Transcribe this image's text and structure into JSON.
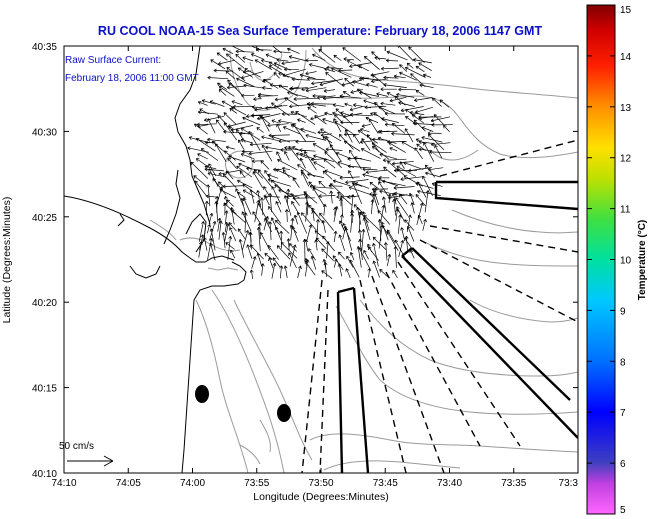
{
  "title": "RU COOL  NOAA-15  Sea Surface Temperature:  February 18, 2006 1147 GMT",
  "annotation": {
    "line1": "Raw Surface Current:",
    "line2": "February 18, 2006 11:00 GMT"
  },
  "scale_label": "50 cm/s",
  "colorbar": {
    "label": "Temperature (°C)",
    "min": 5,
    "max": 15,
    "ticks": [
      "5",
      "6",
      "7",
      "8",
      "9",
      "10",
      "11",
      "12",
      "13",
      "14",
      "15"
    ]
  },
  "chart_data": {
    "type": "map",
    "xlabel": "Longitude (Degrees:Minutes)",
    "ylabel": "Latitude (Degrees:Minutes)",
    "x_ticks": [
      "74:10",
      "74:05",
      "74:00",
      "73:55",
      "73:50",
      "73:45",
      "73:40",
      "73:35",
      "73:3"
    ],
    "y_ticks": [
      "40:35",
      "40:30",
      "40:25",
      "40:20",
      "40:15",
      "40:10"
    ],
    "xlim": [
      "74:10",
      "73:30"
    ],
    "ylim": [
      "40:10",
      "40:35"
    ],
    "grid": false,
    "features": [
      "coastline",
      "bathymetry-contours",
      "surface-current-vectors",
      "shipping-channels"
    ]
  },
  "colors": {
    "title": "#0a10c8",
    "vectors": "#000000",
    "contours": "#9a9a9a",
    "coastline": "#000000"
  }
}
